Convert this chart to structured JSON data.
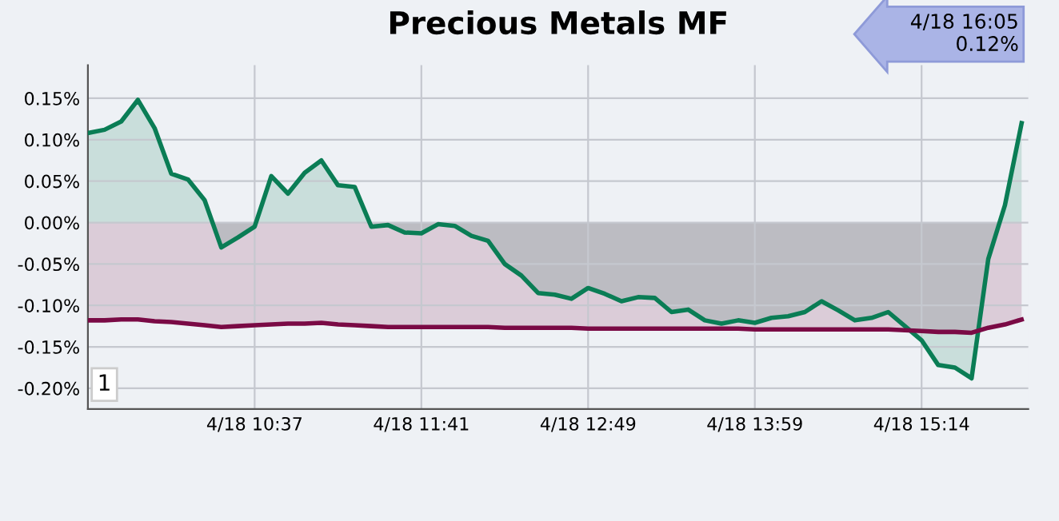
{
  "chart_data": {
    "type": "area",
    "title": "Precious Metals MF",
    "categories": [
      null,
      null,
      null,
      null,
      null,
      null,
      null,
      null,
      null,
      null,
      "4/18 10:37",
      null,
      null,
      null,
      null,
      null,
      null,
      null,
      null,
      null,
      "4/18 11:41",
      null,
      null,
      null,
      null,
      null,
      null,
      null,
      null,
      null,
      "4/18 12:49",
      null,
      null,
      null,
      null,
      null,
      null,
      null,
      null,
      null,
      "4/18 13:59",
      null,
      null,
      null,
      null,
      null,
      null,
      null,
      null,
      null,
      "4/18 15:14",
      null,
      null,
      null,
      null,
      null,
      null
    ],
    "ylim": [
      -0.225,
      0.19
    ],
    "yticks": [
      {
        "value": -0.2,
        "label": "-0.20%"
      },
      {
        "value": -0.15,
        "label": "-0.15%"
      },
      {
        "value": -0.1,
        "label": "-0.10%"
      },
      {
        "value": -0.05,
        "label": "-0.05%"
      },
      {
        "value": 0,
        "label": "0.00%"
      },
      {
        "value": 0.05,
        "label": "0.05%"
      },
      {
        "value": 0.1,
        "label": "0.10%"
      },
      {
        "value": 0.15,
        "label": "0.15%"
      }
    ],
    "grid": true,
    "marker": "none",
    "line_style": "solid",
    "legend": false,
    "series": [
      {
        "color": "#0a7d55",
        "values": [
          0.108,
          0.112,
          0.122,
          0.148,
          0.114,
          0.059,
          0.052,
          0.027,
          -0.03,
          -0.018,
          -0.005,
          0.056,
          0.035,
          0.06,
          0.075,
          0.045,
          0.043,
          -0.005,
          -0.003,
          -0.012,
          -0.013,
          -0.002,
          -0.004,
          -0.016,
          -0.022,
          -0.05,
          -0.064,
          -0.085,
          -0.087,
          -0.092,
          -0.079,
          -0.086,
          -0.095,
          -0.09,
          -0.091,
          -0.108,
          -0.105,
          -0.118,
          -0.122,
          -0.118,
          -0.121,
          -0.115,
          -0.113,
          -0.108,
          -0.095,
          -0.106,
          -0.118,
          -0.115,
          -0.108,
          -0.125,
          -0.142,
          -0.172,
          -0.175,
          -0.188,
          -0.044,
          0.021,
          0.12
        ]
      },
      {
        "color": "#7a0a45",
        "values": [
          -0.118,
          -0.118,
          -0.117,
          -0.117,
          -0.119,
          -0.12,
          -0.122,
          -0.124,
          -0.126,
          -0.125,
          -0.124,
          -0.123,
          -0.122,
          -0.122,
          -0.121,
          -0.123,
          -0.124,
          -0.125,
          -0.126,
          -0.126,
          -0.126,
          -0.126,
          -0.126,
          -0.126,
          -0.126,
          -0.127,
          -0.127,
          -0.127,
          -0.127,
          -0.127,
          -0.128,
          -0.128,
          -0.128,
          -0.128,
          -0.128,
          -0.128,
          -0.128,
          -0.128,
          -0.128,
          -0.128,
          -0.129,
          -0.129,
          -0.129,
          -0.129,
          -0.129,
          -0.129,
          -0.129,
          -0.129,
          -0.129,
          -0.13,
          -0.131,
          -0.132,
          -0.132,
          -0.133,
          -0.127,
          -0.123,
          -0.117
        ]
      }
    ],
    "annotations": [
      "4/18 16:05\n0.12%",
      "1"
    ]
  }
}
